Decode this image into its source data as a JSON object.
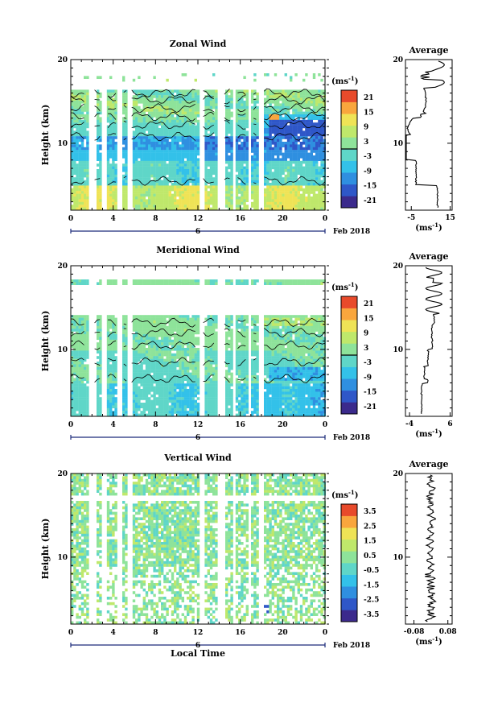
{
  "chart_data": [
    {
      "type": "heatmap",
      "title": "Zonal Wind",
      "ylabel": "Height (km)",
      "x_ticks": [
        "0",
        "4",
        "8",
        "12",
        "16",
        "20",
        "0"
      ],
      "date_label": "6",
      "month_label": "Feb 2018",
      "y_ticks": [
        "10",
        "20"
      ],
      "xlim": [
        0,
        24
      ],
      "ylim": [
        2,
        20
      ],
      "colorbar": {
        "unit": "(ms",
        "unit_sup": "-1",
        "unit_close": ")",
        "ticks": [
          "21",
          "15",
          "9",
          "3",
          "-3",
          "-9",
          "-15",
          "-21"
        ],
        "range": [
          -24,
          24
        ],
        "zero_line": 0
      },
      "average": {
        "title": "Average",
        "y_ticks": [
          "10",
          "20"
        ],
        "x_ticks": [
          "-5",
          "15"
        ],
        "xlim": [
          -8,
          16
        ],
        "unit": "(ms",
        "unit_sup": "-1",
        "unit_close": ")"
      }
    },
    {
      "type": "heatmap",
      "title": "Meridional Wind",
      "ylabel": "Height (km)",
      "x_ticks": [
        "0",
        "4",
        "8",
        "12",
        "16",
        "20",
        "0"
      ],
      "date_label": "6",
      "month_label": "Feb 2018",
      "y_ticks": [
        "10",
        "20"
      ],
      "xlim": [
        0,
        24
      ],
      "ylim": [
        2,
        20
      ],
      "colorbar": {
        "unit": "(ms",
        "unit_sup": "-1",
        "unit_close": ")",
        "ticks": [
          "21",
          "15",
          "9",
          "3",
          "-3",
          "-9",
          "-15",
          "-21"
        ],
        "range": [
          -24,
          24
        ],
        "zero_line": 0
      },
      "average": {
        "title": "Average",
        "y_ticks": [
          "10",
          "20"
        ],
        "x_ticks": [
          "-4",
          "6"
        ],
        "xlim": [
          -5,
          6.5
        ],
        "unit": "(ms",
        "unit_sup": "-1",
        "unit_close": ")"
      }
    },
    {
      "type": "heatmap",
      "title": "Vertical Wind",
      "ylabel": "Height (km)",
      "xlabel": "Local Time",
      "x_ticks": [
        "0",
        "4",
        "8",
        "12",
        "16",
        "20",
        "0"
      ],
      "date_label": "6",
      "month_label": "Feb 2018",
      "y_ticks": [
        "10",
        "20"
      ],
      "xlim": [
        0,
        24
      ],
      "ylim": [
        2,
        20
      ],
      "colorbar": {
        "unit": "(ms",
        "unit_sup": "-1",
        "unit_close": ")",
        "ticks": [
          "3.5",
          "2.5",
          "1.5",
          "0.5",
          "-0.5",
          "-1.5",
          "-2.5",
          "-3.5"
        ],
        "range": [
          -4,
          4
        ],
        "zero_line": null
      },
      "average": {
        "title": "Average",
        "y_ticks": [
          "10",
          "20"
        ],
        "x_ticks": [
          "-0.08",
          "0.08"
        ],
        "xlim": [
          -0.12,
          0.1
        ],
        "unit": "(ms",
        "unit_sup": "-1",
        "unit_close": ")"
      }
    }
  ],
  "palette": [
    "#3b2a8c",
    "#2f57c8",
    "#2f8fe0",
    "#33c1e9",
    "#5fd6c8",
    "#8ee39a",
    "#bfe86b",
    "#efe356",
    "#f9a63d",
    "#e84a2b"
  ]
}
